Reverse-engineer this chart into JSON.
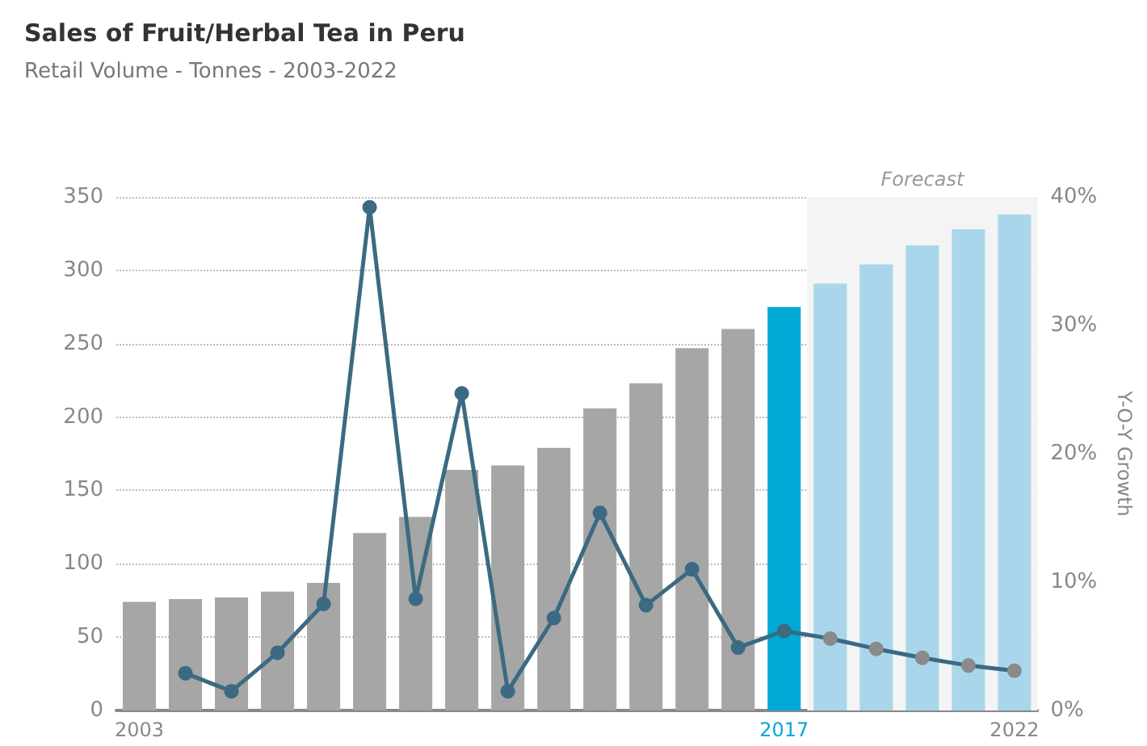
{
  "chart_data": {
    "type": "bar",
    "title": "Sales of Fruit/Herbal Tea in Peru",
    "subtitle": "Retail Volume - Tonnes - 2003-2022",
    "y2label": "Y-O-Y Growth",
    "categories": [
      "2003",
      null,
      null,
      null,
      null,
      null,
      null,
      null,
      null,
      null,
      null,
      null,
      null,
      null,
      "2017",
      null,
      null,
      null,
      null,
      "2022"
    ],
    "series": [
      {
        "values": [
          74,
          76,
          77,
          81,
          87,
          121,
          132,
          164,
          167,
          179,
          206,
          223,
          247,
          260,
          275,
          291,
          304,
          317,
          328,
          338
        ],
        "color": "#a6a6a6",
        "colors": [
          "#a6a6a6",
          "#a6a6a6",
          "#a6a6a6",
          "#a6a6a6",
          "#a6a6a6",
          "#a6a6a6",
          "#a6a6a6",
          "#a6a6a6",
          "#a6a6a6",
          "#a6a6a6",
          "#a6a6a6",
          "#a6a6a6",
          "#a6a6a6",
          "#a6a6a6",
          "#00a9d6",
          "#a9d6ea",
          "#a9d6ea",
          "#a9d6ea",
          "#a9d6ea",
          "#a9d6ea"
        ]
      },
      {
        "type": "line",
        "axis": "y2",
        "color": "#3b6a82",
        "values": [
          null,
          2.9,
          1.5,
          4.5,
          8.3,
          39.2,
          8.7,
          24.7,
          1.5,
          7.2,
          15.4,
          8.2,
          11.0,
          4.9,
          6.2,
          5.6,
          4.8,
          4.1,
          3.5,
          3.1
        ],
        "colors": [
          "#3b6a82",
          "#3b6a82",
          "#3b6a82",
          "#3b6a82",
          "#3b6a82",
          "#3b6a82",
          "#3b6a82",
          "#3b6a82",
          "#3b6a82",
          "#3b6a82",
          "#3b6a82",
          "#3b6a82",
          "#3b6a82",
          "#3b6a82",
          "#3b6a82",
          "#8a8a8a",
          "#8a8a8a",
          "#8a8a8a",
          "#8a8a8a",
          "#8a8a8a"
        ]
      }
    ],
    "ylim": [
      0,
      350
    ],
    "yticks": [
      0,
      50,
      100,
      150,
      200,
      250,
      300,
      350
    ],
    "y2lim": [
      0,
      40
    ],
    "y2ticks": [
      {
        "value": 0,
        "label": "0%"
      },
      {
        "value": 10,
        "label": "10%"
      },
      {
        "value": 20,
        "label": "20%"
      },
      {
        "value": 30,
        "label": "30%"
      },
      {
        "value": 40,
        "label": "40%"
      }
    ],
    "annotations": [
      "Forecast"
    ],
    "grid": "y",
    "marker": "circle",
    "line_style": "solid"
  }
}
